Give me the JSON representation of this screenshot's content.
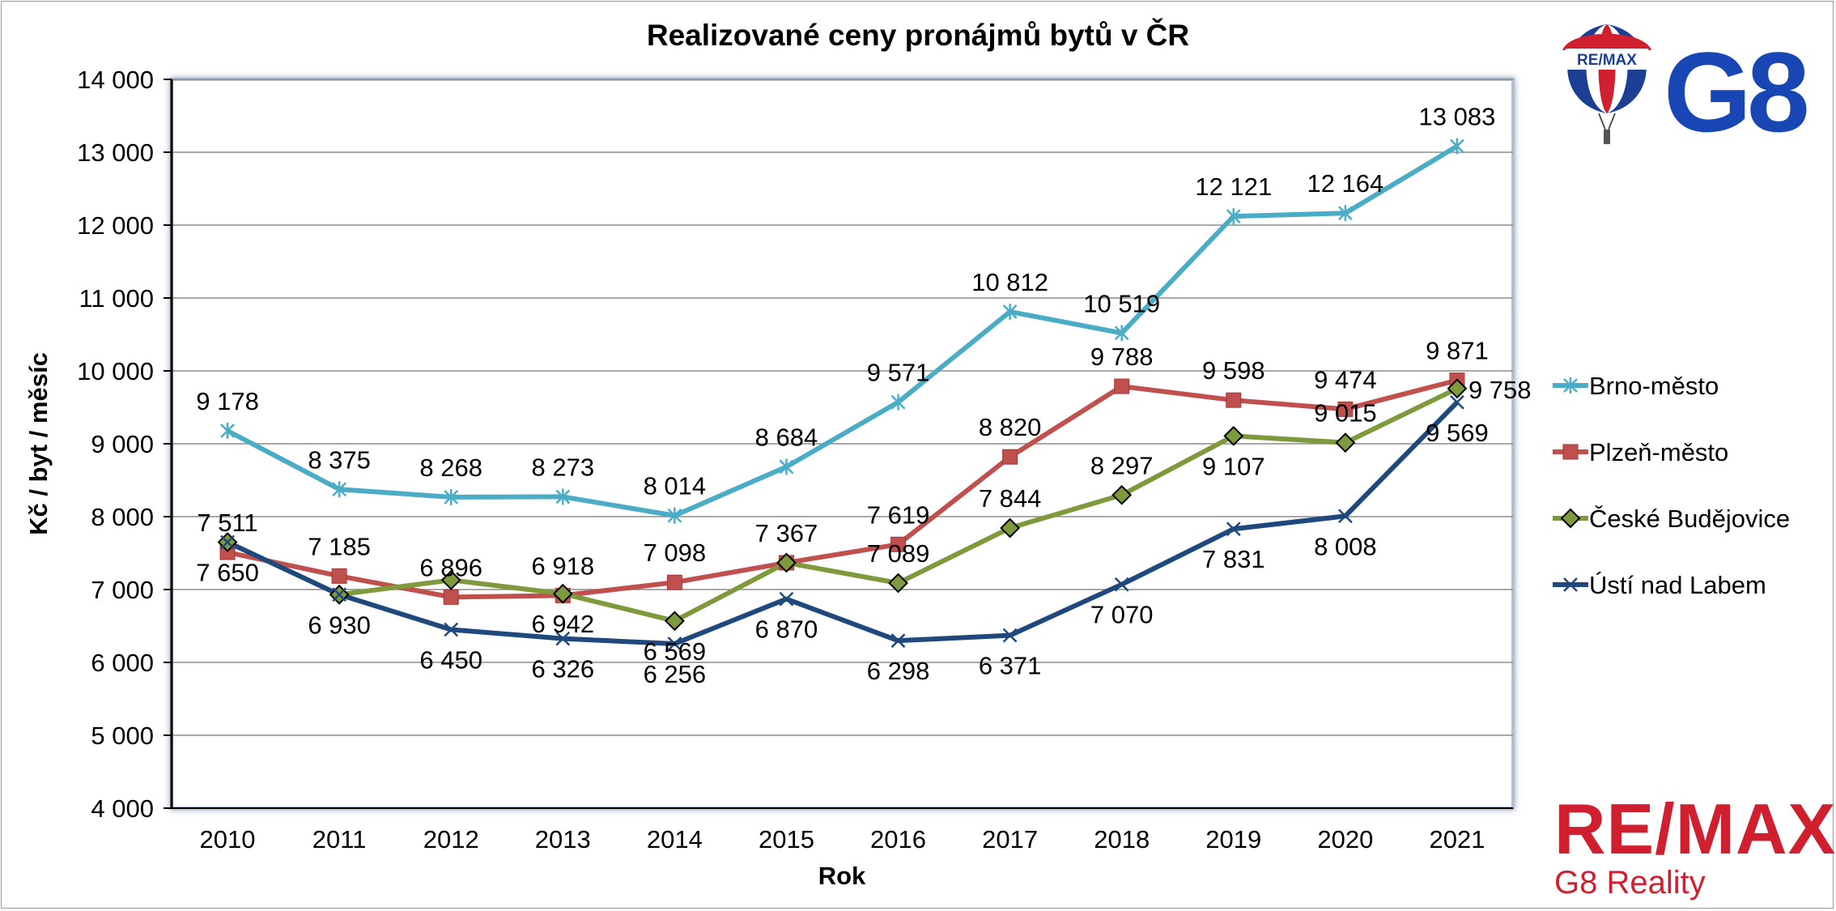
{
  "chart_data": {
    "type": "line",
    "title": "Realizované ceny pronájmů bytů v ČR",
    "xlabel": "Rok",
    "ylabel": "Kč / byt / měsíc",
    "ylim": [
      4000,
      14000
    ],
    "ytick_step": 1000,
    "categories": [
      "2010",
      "2011",
      "2012",
      "2013",
      "2014",
      "2015",
      "2016",
      "2017",
      "2018",
      "2019",
      "2020",
      "2021"
    ],
    "legend_position": "right",
    "grid": true,
    "series": [
      {
        "name": "Brno-město",
        "color": "#4bacc6",
        "marker": "star",
        "values": [
          9178,
          8375,
          8268,
          8273,
          8014,
          8684,
          9571,
          10812,
          10519,
          12121,
          12164,
          13083
        ],
        "labels": [
          "9 178",
          "8 375",
          "8 268",
          "8 273",
          "8 014",
          "8 684",
          "9 571",
          "10 812",
          "10 519",
          "12 121",
          "12 164",
          "13 083"
        ]
      },
      {
        "name": "Plzeň-město",
        "color": "#c0504d",
        "marker": "square",
        "values": [
          7511,
          7185,
          6896,
          6918,
          7098,
          7367,
          7619,
          8820,
          9788,
          9598,
          9474,
          9871
        ],
        "labels": [
          "7 511",
          "7 185",
          "6 896",
          "6 918",
          "7 098",
          "7 367",
          "7 619",
          "8 820",
          "9 788",
          "9 598",
          "9 474",
          "9 871"
        ]
      },
      {
        "name": "České Budějovice",
        "color": "#7f9a3c",
        "marker": "diamond",
        "values": [
          7650,
          6930,
          7130,
          6942,
          6569,
          7367,
          7089,
          7844,
          8297,
          9107,
          9015,
          9758
        ],
        "labels": [
          "7 650",
          "6 930",
          "",
          "6 942",
          "6 569",
          "",
          "7 089",
          "7 844",
          "8 297",
          "9 107",
          "9 015",
          "9 758"
        ]
      },
      {
        "name": "Ústí nad Labem",
        "color": "#1f497d",
        "marker": "x",
        "values": [
          7650,
          6930,
          6450,
          6326,
          6256,
          6870,
          6298,
          6371,
          7070,
          7831,
          8008,
          9569
        ],
        "labels": [
          "",
          "",
          "6 450",
          "6 326",
          "6 256",
          "6 870",
          "6 298",
          "6 371",
          "7 070",
          "7 831",
          "8 008",
          "9 569"
        ]
      }
    ]
  },
  "branding": {
    "balloon_text": "RE/MAX",
    "g8_text": "G8",
    "remax_word": "RE/MAX",
    "remax_sub": "G8 Reality",
    "red": "#d0202f",
    "blue": "#1846b4"
  }
}
